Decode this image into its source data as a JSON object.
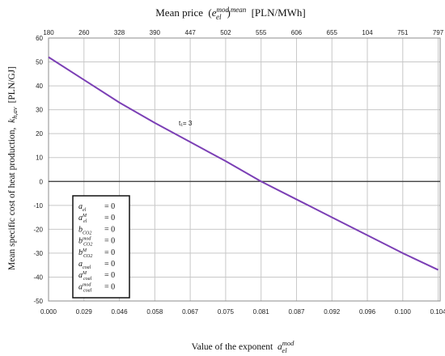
{
  "chart_data": {
    "type": "line",
    "title_parts": {
      "prefix": "Mean price",
      "expr_open": "(",
      "expr_base": "e",
      "expr_sup": "mod",
      "expr_sub": "el",
      "expr_close": ")",
      "expr_outer_sup": "mean",
      "unit": "[PLN/MWh]"
    },
    "xlabel_parts": {
      "prefix": "Value of the exponent",
      "base": "a",
      "sup": "mod",
      "sub": "el"
    },
    "ylabel_parts": {
      "prefix": "Mean specific cost of heat production,",
      "base": "k",
      "sub": "h,av",
      "unit": "[PLN/GJ]"
    },
    "x_bottom_ticks": [
      "0.000",
      "0.029",
      "0.046",
      "0.058",
      "0.067",
      "0.075",
      "0.081",
      "0.087",
      "0.092",
      "0.096",
      "0.100",
      "0.104"
    ],
    "x_top_ticks": [
      "180",
      "260",
      "328",
      "390",
      "447",
      "502",
      "555",
      "606",
      "655",
      "104",
      "751",
      "797"
    ],
    "y_ticks": [
      60,
      50,
      40,
      30,
      20,
      10,
      0,
      -10,
      -20,
      -30,
      -40,
      -50
    ],
    "ylim": [
      -50,
      60
    ],
    "grid": true,
    "series": [
      {
        "color": "#7b3fb5",
        "x_index": [
          0,
          1,
          2,
          3,
          4,
          5,
          6,
          7,
          8,
          9,
          10,
          11
        ],
        "values": [
          52,
          42.5,
          33,
          24.5,
          16.5,
          8.5,
          0,
          -7.5,
          -15,
          -22.5,
          -30,
          -37
        ]
      }
    ],
    "annotation": "t₁= 3",
    "legend_entries": [
      {
        "base": "a",
        "sup": "",
        "sub": "el",
        "value": "= 0"
      },
      {
        "base": "a",
        "sup": "M",
        "sub": "el",
        "value": "= 0"
      },
      {
        "base": "b",
        "sup": "",
        "sub": "CO2",
        "value": "= 0"
      },
      {
        "base": "b",
        "sup": "mod",
        "sub": "CO2",
        "value": "= 0"
      },
      {
        "base": "b",
        "sup": "M",
        "sub": "CO2",
        "value": "= 0"
      },
      {
        "base": "a",
        "sup": "",
        "sub": "coal",
        "value": "= 0"
      },
      {
        "base": "a",
        "sup": "M",
        "sub": "coal",
        "value": "= 0"
      },
      {
        "base": "a",
        "sup": "mod",
        "sub": "coal",
        "value": "= 0"
      }
    ],
    "legend_position": "bottom-left"
  }
}
